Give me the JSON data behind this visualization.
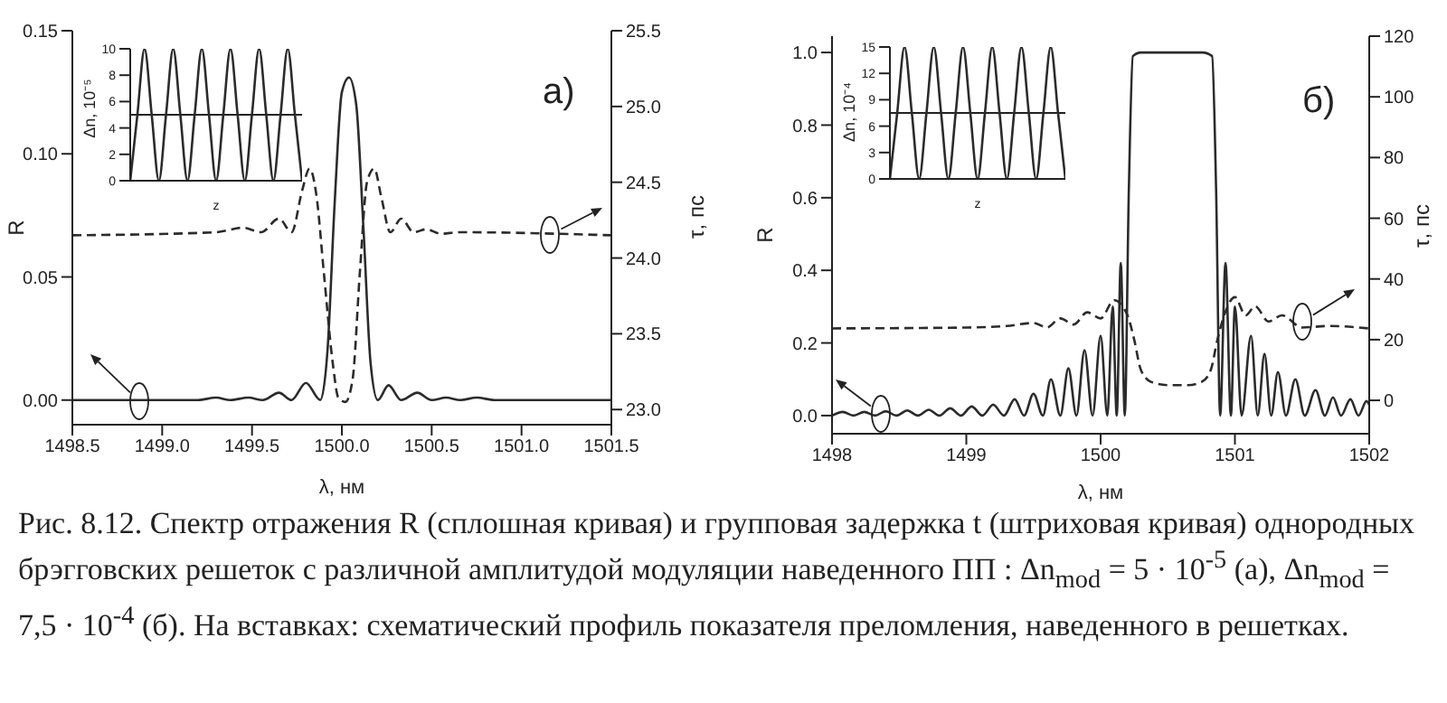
{
  "chart_data": [
    {
      "type": "line",
      "xlabel": "λ, нм",
      "ylabel": "R",
      "y2label": "τ, пс",
      "annotations": [
        "a)",
        "Рис. 8.12. Спектр отражения R (сплошная кривая) и групповая задержка t (штриховая кривая) однородных брэгговских решеток с различной амплитудой модуляции наведенного ПП : Δn$_{mod}$ = 5 · 10$^{-5}$ (а), Δn$_{mod}$ = 7,5 · 10$^{-4}$ (б). На вставках: схематический профиль показателя преломления, наведенного в решетках."
      ],
      "xlim": [
        1498.5,
        1501.5
      ],
      "xticks": [
        {
          "value": 1498.5,
          "label": "1498.5"
        },
        {
          "value": 1499,
          "label": "1499.0"
        },
        {
          "value": 1499.5,
          "label": "1499.5"
        },
        {
          "value": 1500,
          "label": "1500.0"
        },
        {
          "value": 1500.5,
          "label": "1500.5"
        },
        {
          "value": 1501,
          "label": "1501.0"
        },
        {
          "value": 1501.5,
          "label": "1501.5"
        }
      ],
      "ylim": [
        -0.01,
        0.15
      ],
      "yticks": [
        {
          "value": 0,
          "label": "0.00"
        },
        {
          "value": 0.05,
          "label": "0.05"
        },
        {
          "value": 0.1,
          "label": "0.10"
        },
        {
          "value": 0.15,
          "label": "0.15"
        }
      ],
      "y2lim": [
        22.9,
        25.5
      ],
      "y2ticks": [
        {
          "value": 23,
          "label": "23.0"
        },
        {
          "value": 23.5,
          "label": "23.5"
        },
        {
          "value": 24,
          "label": "24.0"
        },
        {
          "value": 24.5,
          "label": "24.5"
        },
        {
          "value": 25,
          "label": "25.0"
        },
        {
          "value": 25.5,
          "label": "25.5"
        }
      ],
      "series": [
        {
          "color": "#2b2b2b",
          "line_style": "solid",
          "x": [
            1498.5,
            1499.2,
            1499.3,
            1499.38,
            1499.48,
            1499.56,
            1499.65,
            1499.72,
            1499.8,
            1499.88,
            1499.92,
            1499.96,
            1500.0,
            1500.04,
            1500.08,
            1500.12,
            1500.16,
            1500.2,
            1500.26,
            1500.33,
            1500.42,
            1500.5,
            1500.58,
            1500.66,
            1500.75,
            1500.85,
            1501.5
          ],
          "values": [
            0,
            0,
            0.001,
            0,
            0.001,
            0,
            0.003,
            0,
            0.007,
            0,
            0.02,
            0.08,
            0.125,
            0.131,
            0.12,
            0.07,
            0.015,
            0,
            0.006,
            0,
            0.003,
            0,
            0.001,
            0,
            0.001,
            0,
            0
          ]
        },
        {
          "color": "#2b2b2b",
          "line_style": "dashed",
          "axis": "y2",
          "x": [
            1498.5,
            1499.3,
            1499.45,
            1499.55,
            1499.65,
            1499.72,
            1499.78,
            1499.82,
            1499.86,
            1499.9,
            1499.95,
            1499.98,
            1500.02,
            1500.06,
            1500.1,
            1500.14,
            1500.18,
            1500.22,
            1500.27,
            1500.33,
            1500.4,
            1500.47,
            1500.55,
            1500.65,
            1501.5
          ],
          "values": [
            24.15,
            24.17,
            24.2,
            24.17,
            24.26,
            24.17,
            24.45,
            24.59,
            24.4,
            23.9,
            23.3,
            23.08,
            23.05,
            23.2,
            23.9,
            24.5,
            24.59,
            24.4,
            24.17,
            24.26,
            24.17,
            24.19,
            24.16,
            24.17,
            24.15
          ]
        }
      ]
    },
    {
      "type": "line",
      "xlabel": "z",
      "ylabel": "Δn, 10⁻⁵",
      "categories": [
        null,
        null,
        null,
        null,
        null,
        null,
        null,
        null,
        null,
        null,
        null,
        null,
        null,
        null,
        null,
        null,
        null,
        null,
        null,
        null,
        null,
        null,
        null,
        null,
        null
      ],
      "ylim": [
        0,
        10
      ],
      "yticks": [
        0,
        2,
        4,
        6,
        8,
        10
      ],
      "ref_lines": [
        {
          "axis": "y",
          "value": 5
        }
      ],
      "series": [
        {
          "color": "#2b2b2b",
          "line_style": "solid",
          "values": [
            0,
            5,
            10,
            5,
            0,
            5,
            10,
            5,
            0,
            5,
            10,
            5,
            0,
            5,
            10,
            5,
            0,
            5,
            10,
            5,
            0,
            5,
            10,
            5,
            0
          ]
        }
      ]
    },
    {
      "type": "line",
      "xlabel": "λ, нм",
      "ylabel": "R",
      "y2label": "τ, пс",
      "annotations": [
        "б)"
      ],
      "xlim": [
        1498,
        1502
      ],
      "xticks": [
        1498,
        1499,
        1500,
        1501,
        1502
      ],
      "ylim": [
        -0.05,
        1.045
      ],
      "yticks": [
        {
          "value": 0,
          "label": "0.0"
        },
        {
          "value": 0.2,
          "label": "0.2"
        },
        {
          "value": 0.4,
          "label": "0.4"
        },
        {
          "value": 0.6,
          "label": "0.6"
        },
        {
          "value": 0.8,
          "label": "0.8"
        },
        {
          "value": 1,
          "label": "1.0"
        }
      ],
      "y2lim": [
        -11,
        120
      ],
      "y2ticks": [
        0,
        20,
        40,
        60,
        80,
        100,
        120
      ],
      "series": [
        {
          "color": "#2b2b2b",
          "line_style": "solid",
          "x": [
            1498,
            1498.08,
            1498.16,
            1498.24,
            1498.32,
            1498.4,
            1498.48,
            1498.56,
            1498.64,
            1498.72,
            1498.8,
            1498.88,
            1498.96,
            1499.04,
            1499.12,
            1499.2,
            1499.28,
            1499.36,
            1499.43,
            1499.5,
            1499.57,
            1499.63,
            1499.7,
            1499.76,
            1499.82,
            1499.88,
            1499.94,
            1500,
            1500.05,
            1500.09,
            1500.12,
            1500.15,
            1500.18,
            1500.21,
            1500.24,
            1500.3,
            1500.5,
            1500.76,
            1500.83,
            1500.86,
            1500.89,
            1500.93,
            1500.97,
            1501,
            1501.05,
            1501.12,
            1501.17,
            1501.22,
            1501.27,
            1501.32,
            1501.38,
            1501.45,
            1501.52,
            1501.6,
            1501.67,
            1501.73,
            1501.79,
            1501.86,
            1501.92,
            1501.98,
            1502
          ],
          "values": [
            0,
            0.01,
            0,
            0.01,
            0,
            0.012,
            0,
            0.014,
            0,
            0.016,
            0,
            0.02,
            0,
            0.025,
            0,
            0.03,
            0,
            0.045,
            0,
            0.06,
            0,
            0.1,
            0,
            0.13,
            0,
            0.18,
            0,
            0.22,
            0,
            0.3,
            0,
            0.42,
            0,
            0.62,
            0.99,
            1.0,
            1.0,
            1.0,
            0.99,
            0.62,
            0,
            0.42,
            0,
            0.3,
            0,
            0.22,
            0,
            0.17,
            0,
            0.12,
            0,
            0.1,
            0,
            0.07,
            0,
            0.05,
            0,
            0.045,
            0,
            0.04,
            0.03
          ]
        },
        {
          "color": "#2b2b2b",
          "line_style": "dashed",
          "axis": "y2",
          "x": [
            1498,
            1499,
            1499.3,
            1499.5,
            1499.6,
            1499.7,
            1499.8,
            1499.9,
            1500,
            1500.1,
            1500.2,
            1500.25,
            1500.3,
            1500.38,
            1500.5,
            1500.65,
            1500.75,
            1500.82,
            1500.87,
            1500.92,
            1501,
            1501.08,
            1501.15,
            1501.25,
            1501.35,
            1501.5,
            1501.7,
            1502
          ],
          "values": [
            23.7,
            24,
            24.5,
            25.5,
            24,
            27,
            25,
            29,
            27,
            33,
            28,
            20,
            10,
            6,
            5,
            5,
            6,
            10,
            20,
            28,
            34,
            28,
            31,
            26,
            28,
            24,
            24.5,
            23.7
          ]
        }
      ]
    },
    {
      "type": "line",
      "xlabel": "z",
      "ylabel": "Δn, 10⁻⁴",
      "categories": [
        null,
        null,
        null,
        null,
        null,
        null,
        null,
        null,
        null,
        null,
        null,
        null,
        null,
        null,
        null,
        null,
        null,
        null,
        null,
        null,
        null,
        null,
        null,
        null,
        null
      ],
      "ylim": [
        0,
        15
      ],
      "yticks": [
        0,
        3,
        6,
        9,
        12,
        15
      ],
      "ref_lines": [
        {
          "axis": "y",
          "value": 7.5
        }
      ],
      "series": [
        {
          "color": "#2b2b2b",
          "line_style": "solid",
          "values": [
            0,
            7.5,
            15,
            7.5,
            0,
            7.5,
            15,
            7.5,
            0,
            7.5,
            15,
            7.5,
            0,
            7.5,
            15,
            7.5,
            0,
            7.5,
            15,
            7.5,
            0,
            7.5,
            15,
            7.5,
            0
          ]
        }
      ]
    }
  ]
}
